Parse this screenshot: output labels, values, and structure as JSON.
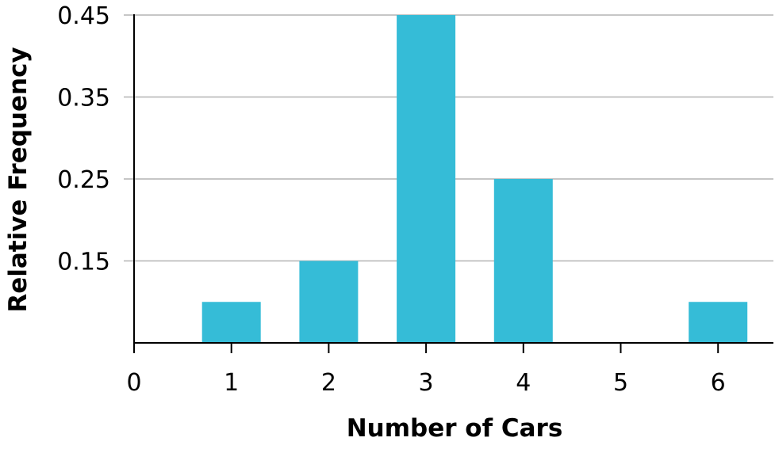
{
  "chart_data": {
    "type": "bar",
    "title": "",
    "xlabel": "Number of Cars",
    "ylabel": "Relative Frequency",
    "x_ticks": [
      "0",
      "1",
      "2",
      "3",
      "4",
      "5",
      "6"
    ],
    "y_ticks": [
      "0.45",
      "0.35",
      "0.25",
      "0.15"
    ],
    "xlim": [
      0,
      6.6
    ],
    "ylim": [
      0.05,
      0.45
    ],
    "categories": [
      "1",
      "2",
      "3",
      "4",
      "5",
      "6"
    ],
    "x": [
      1,
      2,
      3,
      4,
      5,
      6
    ],
    "values": [
      0.1,
      0.15,
      0.45,
      0.25,
      0.05,
      0.1
    ],
    "grid": true,
    "legend": "none",
    "bar_color": "#35BCD7",
    "grid_color": "#B3B3B3",
    "axis_color": "#000000"
  }
}
